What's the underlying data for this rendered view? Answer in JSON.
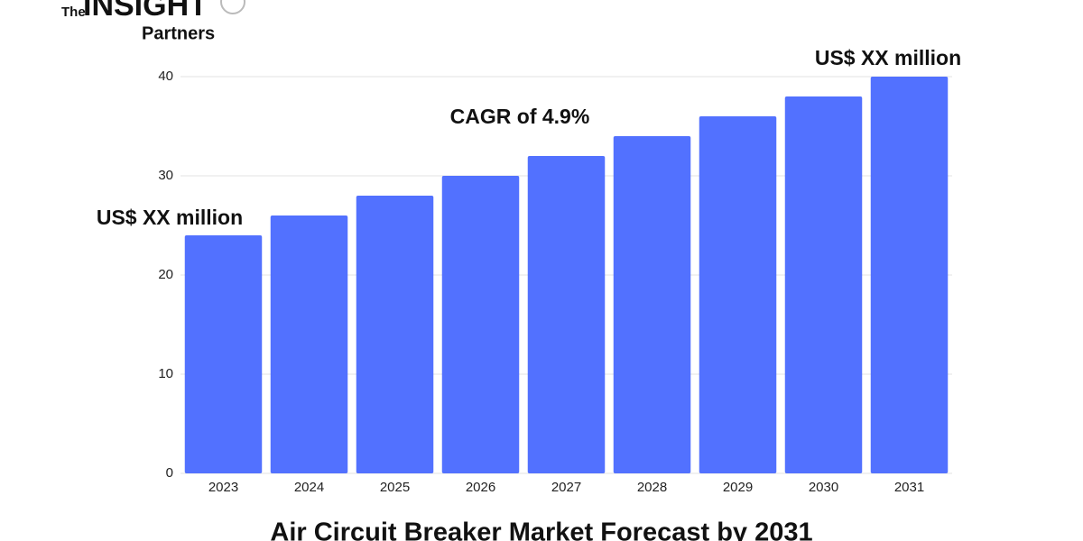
{
  "logo": {
    "small": "The",
    "main": "INSIGHT",
    "sub": "Partners"
  },
  "chart_data": {
    "type": "bar",
    "title": "Air Circuit Breaker Market Forecast by 2031",
    "categories": [
      "2023",
      "2024",
      "2025",
      "2026",
      "2027",
      "2028",
      "2029",
      "2030",
      "2031"
    ],
    "values": [
      24,
      26,
      28,
      30,
      32,
      34,
      36,
      38,
      40
    ],
    "color": "#5271ff",
    "ylim": [
      0,
      40
    ],
    "yticks": [
      0,
      10,
      20,
      30,
      40
    ],
    "grid": true,
    "annotations": [
      "US$ XX million",
      "CAGR of 4.9%",
      "US$ XX million"
    ]
  }
}
